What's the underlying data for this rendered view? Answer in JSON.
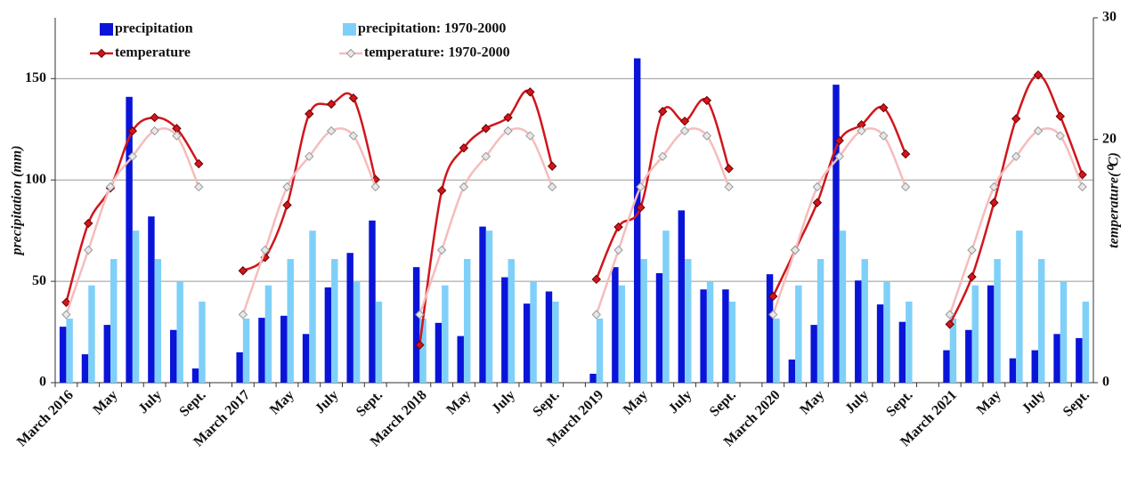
{
  "chart_data": {
    "type": "bar",
    "y_label": "precipitation (mm)",
    "y2_label": "temperature(⁰C)",
    "categories": [
      "March 2016",
      null,
      "May",
      null,
      "July",
      null,
      "Sept.",
      null,
      "March 2017",
      null,
      "May",
      null,
      "July",
      null,
      "Sept.",
      null,
      "March 2018",
      null,
      "May",
      null,
      "July",
      null,
      "Sept.",
      null,
      "March 2019",
      null,
      "May",
      null,
      "July",
      null,
      "Sept.",
      null,
      "March 2020",
      null,
      "May",
      null,
      "July",
      null,
      "Sept.",
      null,
      "March 2021",
      null,
      "May",
      null,
      "July",
      null,
      "Sept."
    ],
    "series": [
      {
        "name": "precipitation",
        "type": "bar",
        "color": "#0a14d8",
        "values": [
          27.6,
          14,
          28.5,
          141,
          82,
          26,
          7,
          null,
          15,
          32,
          33,
          24,
          47,
          64,
          80,
          null,
          57,
          29.5,
          23,
          77,
          52,
          39,
          45,
          null,
          4.4,
          57,
          160,
          54,
          85,
          46,
          46,
          null,
          53.5,
          11.4,
          28.5,
          147,
          50.4,
          38.6,
          30,
          null,
          16,
          26,
          48,
          12,
          16,
          24,
          22
        ]
      },
      {
        "name": "precipitation: 1970-2000",
        "type": "bar",
        "color": "#7fd0f8",
        "values": [
          31.6,
          48,
          61,
          75,
          61,
          50,
          40,
          null,
          31.6,
          48,
          61,
          75,
          61,
          50,
          40,
          null,
          31.6,
          48,
          61,
          75,
          61,
          50,
          40,
          null,
          31.6,
          48,
          61,
          75,
          61,
          50,
          40,
          null,
          31.6,
          48,
          61,
          75,
          61,
          50,
          40,
          null,
          31.6,
          48,
          61,
          75,
          61,
          50,
          40
        ]
      },
      {
        "name": "temperature",
        "type": "line",
        "axis": "y2",
        "color": "#d0161c",
        "values": [
          6.6,
          13.1,
          16,
          20.7,
          21.8,
          20.9,
          18,
          null,
          9.2,
          10.3,
          14.6,
          22.1,
          22.9,
          23.4,
          16.7,
          null,
          3.1,
          15.8,
          19.3,
          20.9,
          21.8,
          23.9,
          17.8,
          null,
          8.5,
          12.8,
          14.4,
          22.3,
          21.5,
          23.2,
          17.6,
          null,
          7.1,
          10.9,
          14.8,
          19.9,
          21.2,
          22.6,
          18.8,
          null,
          4.8,
          8.7,
          14.8,
          21.7,
          25.3,
          21.9,
          17.1
        ]
      },
      {
        "name": "temperature: 1970-2000",
        "type": "line",
        "axis": "y2",
        "color": "#f6bcbc",
        "values": [
          5.6,
          10.9,
          16.1,
          18.6,
          20.7,
          20.3,
          16.1,
          null,
          5.6,
          10.9,
          16.1,
          18.6,
          20.7,
          20.3,
          16.1,
          null,
          5.6,
          10.9,
          16.1,
          18.6,
          20.7,
          20.3,
          16.1,
          null,
          5.6,
          10.9,
          16.1,
          18.6,
          20.7,
          20.3,
          16.1,
          null,
          5.6,
          10.9,
          16.1,
          18.6,
          20.7,
          20.3,
          16.1,
          null,
          5.6,
          10.9,
          16.1,
          18.6,
          20.7,
          20.3,
          16.1
        ]
      }
    ],
    "ylim": [
      0,
      180
    ],
    "yticks": [
      0,
      50,
      100,
      150
    ],
    "y2lim": [
      0,
      30
    ],
    "y2ticks": [
      0,
      20,
      30
    ],
    "grid": true,
    "legend": "top-left"
  }
}
